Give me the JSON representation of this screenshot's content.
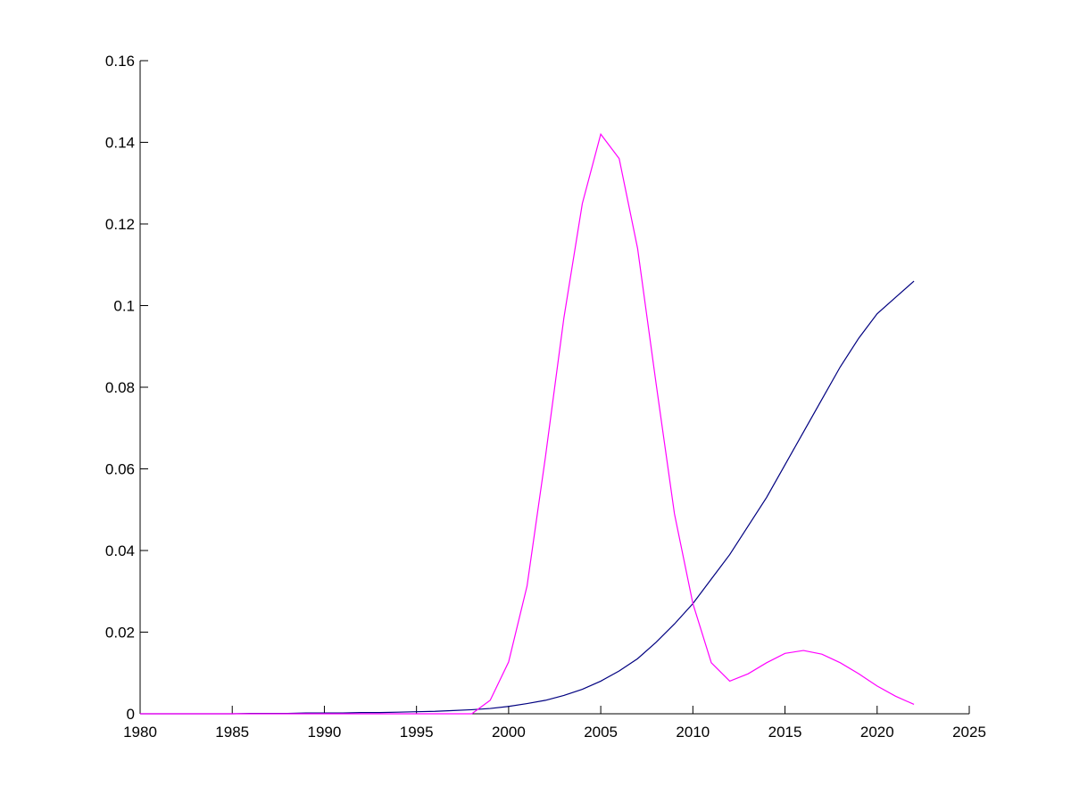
{
  "chart_data": {
    "type": "line",
    "x": [
      1980,
      1981,
      1982,
      1983,
      1984,
      1985,
      1986,
      1987,
      1988,
      1989,
      1990,
      1991,
      1992,
      1993,
      1994,
      1995,
      1996,
      1997,
      1998,
      1999,
      2000,
      2001,
      2002,
      2003,
      2004,
      2005,
      2006,
      2007,
      2008,
      2009,
      2010,
      2011,
      2012,
      2013,
      2014,
      2015,
      2016,
      2017,
      2018,
      2019,
      2020,
      2021,
      2022
    ],
    "series": [
      {
        "color": "#000080",
        "values": [
          0,
          0,
          0,
          0,
          0,
          0,
          0.0001,
          0.0001,
          0.0001,
          0.0002,
          0.0002,
          0.0002,
          0.0003,
          0.0003,
          0.0004,
          0.0005,
          0.0006,
          0.0008,
          0.001,
          0.0013,
          0.0018,
          0.0025,
          0.0033,
          0.0045,
          0.006,
          0.008,
          0.0105,
          0.0135,
          0.0175,
          0.022,
          0.027,
          0.033,
          0.039,
          0.046,
          0.053,
          0.061,
          0.069,
          0.077,
          0.085,
          0.092,
          0.098,
          0.102,
          0.106
        ]
      },
      {
        "color": "#ff00ff",
        "values": [
          0,
          0,
          0,
          0,
          0,
          0,
          0,
          0,
          0,
          0,
          0,
          0,
          0,
          0,
          0,
          0,
          0,
          0,
          0,
          0.0033,
          0.0127,
          0.0313,
          0.063,
          0.097,
          0.125,
          0.142,
          0.136,
          0.114,
          0.081,
          0.049,
          0.027,
          0.0125,
          0.008,
          0.0098,
          0.0125,
          0.0148,
          0.0155,
          0.0146,
          0.0125,
          0.0098,
          0.0068,
          0.0043,
          0.0023
        ]
      }
    ],
    "xlim": [
      1980,
      2025
    ],
    "xticks": [
      1980,
      1985,
      1990,
      1995,
      2000,
      2005,
      2010,
      2015,
      2020,
      2025
    ],
    "ylim": [
      0,
      0.16
    ],
    "yticks": [
      0,
      0.02,
      0.04,
      0.06,
      0.08,
      0.1,
      0.12,
      0.14,
      0.16
    ]
  }
}
